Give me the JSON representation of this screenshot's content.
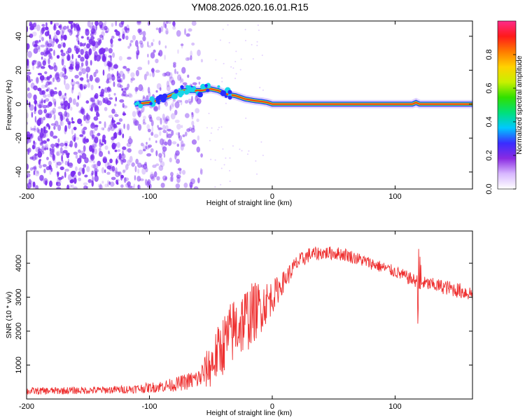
{
  "page_title": "YM08.2026.020.16.01.R15",
  "colors": {
    "scatter": "#7a2cf0",
    "ridge_core": "#e8281e",
    "ridge_mid": "#ffb000",
    "ridge_outer": "#2f3cff",
    "line": "#ee3030",
    "colorbar_stops": [
      "#ffffff",
      "#d8b8ff",
      "#8a2be2",
      "#3a2cff",
      "#00c8ff",
      "#00e07a",
      "#30e000",
      "#c8f000",
      "#ffd200",
      "#ff7a00",
      "#ff1a1a",
      "#ff2a8a"
    ]
  },
  "chart_data": [
    {
      "type": "heatmap",
      "xlabel": "Height of straight line (km)",
      "ylabel": "Frequency (Hz)",
      "xlim": [
        -200,
        163
      ],
      "ylim": [
        -50,
        49
      ],
      "xticks": [
        -200,
        -100,
        0,
        100
      ],
      "yticks": [
        -40,
        -20,
        0,
        20,
        40
      ],
      "colorbar": {
        "label": "Normalized spectral amplitude",
        "range": [
          0,
          1
        ],
        "ticks": [
          0.0,
          0.2,
          0.4,
          0.6,
          0.8
        ]
      },
      "ridge": {
        "x": [
          -112,
          -100,
          -90,
          -80,
          -72,
          -65,
          -58,
          -50,
          -44,
          -38,
          -30,
          -22,
          -14,
          -8,
          -4,
          0,
          40,
          80,
          114,
          117,
          120,
          163
        ],
        "freq_hz": [
          0,
          1,
          3,
          6,
          8,
          8,
          8,
          9,
          8,
          6,
          5,
          3,
          2,
          1.5,
          1,
          0,
          0,
          0,
          0,
          1,
          0,
          0
        ]
      }
    },
    {
      "type": "line",
      "xlabel": "Height of straight line (km)",
      "ylabel": "SNR (10 * v/v)",
      "xlim": [
        -200,
        163
      ],
      "ylim": [
        0,
        4950
      ],
      "xticks": [
        -200,
        -100,
        0,
        100
      ],
      "yticks": [
        1000,
        2000,
        3000,
        4000
      ],
      "series": [
        {
          "name": "SNR",
          "envelope_x": [
            -200,
            -160,
            -140,
            -120,
            -100,
            -80,
            -60,
            -50,
            -40,
            -30,
            -20,
            -10,
            0,
            10,
            20,
            30,
            40,
            50,
            60,
            80,
            100,
            115,
            125,
            140,
            163
          ],
          "mean": [
            230,
            250,
            260,
            280,
            330,
            420,
            600,
            1000,
            1600,
            2100,
            2400,
            2700,
            3000,
            3500,
            4000,
            4250,
            4300,
            4300,
            4250,
            4000,
            3750,
            3500,
            3400,
            3300,
            3100
          ],
          "noise": [
            110,
            110,
            110,
            120,
            150,
            200,
            300,
            700,
            900,
            1000,
            1000,
            800,
            500,
            300,
            250,
            220,
            200,
            200,
            200,
            180,
            180,
            200,
            200,
            220,
            240
          ]
        }
      ]
    }
  ]
}
